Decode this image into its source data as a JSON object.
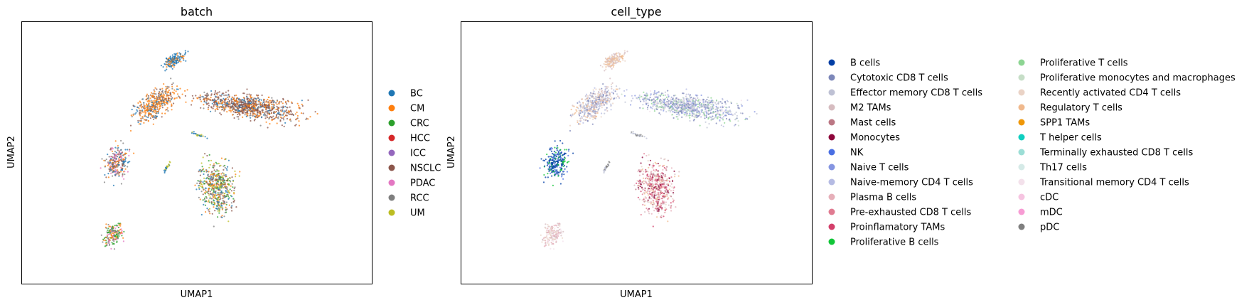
{
  "chart_data": [
    {
      "type": "scatter",
      "title": "batch",
      "xlabel": "UMAP1",
      "ylabel": "UMAP2",
      "ticks": false,
      "grid": false,
      "legend_position": "right",
      "legend": [
        {
          "label": "BC",
          "color": "#1f77b4"
        },
        {
          "label": "CM",
          "color": "#ff7f0e"
        },
        {
          "label": "CRC",
          "color": "#2ca02c"
        },
        {
          "label": "HCC",
          "color": "#d62728"
        },
        {
          "label": "ICC",
          "color": "#9467bd"
        },
        {
          "label": "NSCLC",
          "color": "#8c564b"
        },
        {
          "label": "PDAC",
          "color": "#e377c2"
        },
        {
          "label": "RCC",
          "color": "#7f7f7f"
        },
        {
          "label": "UM",
          "color": "#bcbd22"
        }
      ]
    },
    {
      "type": "scatter",
      "title": "cell_type",
      "xlabel": "UMAP1",
      "ylabel": "UMAP2",
      "ticks": false,
      "grid": false,
      "legend_position": "right",
      "legend": [
        {
          "label": "B cells",
          "color": "#023fa5"
        },
        {
          "label": "Cytotoxic CD8 T cells",
          "color": "#7d87b9"
        },
        {
          "label": "Effector memory CD8 T cells",
          "color": "#bec1d4"
        },
        {
          "label": "M2 TAMs",
          "color": "#d6bcc0"
        },
        {
          "label": "Mast cells",
          "color": "#bb7784"
        },
        {
          "label": "Monocytes",
          "color": "#8e063b"
        },
        {
          "label": "NK",
          "color": "#4a6fe3"
        },
        {
          "label": "Naive T cells",
          "color": "#8595e1"
        },
        {
          "label": "Naive-memory CD4 T cells",
          "color": "#b5bbe3"
        },
        {
          "label": "Plasma B cells",
          "color": "#e6afb9"
        },
        {
          "label": "Pre-exhausted CD8 T cells",
          "color": "#e07b91"
        },
        {
          "label": "Proinflamatory TAMs",
          "color": "#d33f6a"
        },
        {
          "label": "Proliferative B cells",
          "color": "#11c638"
        },
        {
          "label": "Proliferative T cells",
          "color": "#8dd593"
        },
        {
          "label": "Proliferative monocytes and macrophages",
          "color": "#c6dec7"
        },
        {
          "label": "Recently activated CD4 T cells",
          "color": "#ead3c6"
        },
        {
          "label": "Regulatory T cells",
          "color": "#f0b98d"
        },
        {
          "label": "SPP1 TAMs",
          "color": "#ef9708"
        },
        {
          "label": "T helper cells",
          "color": "#0fcfc0"
        },
        {
          "label": "Terminally exhausted CD8 T cells",
          "color": "#9cded6"
        },
        {
          "label": "Th17 cells",
          "color": "#d5eae7"
        },
        {
          "label": "Transitional memory CD4 T cells",
          "color": "#f3e1eb"
        },
        {
          "label": "cDC",
          "color": "#f6c4e1"
        },
        {
          "label": "mDC",
          "color": "#f79cd4"
        },
        {
          "label": "pDC",
          "color": "#7f7f7f"
        }
      ]
    }
  ]
}
